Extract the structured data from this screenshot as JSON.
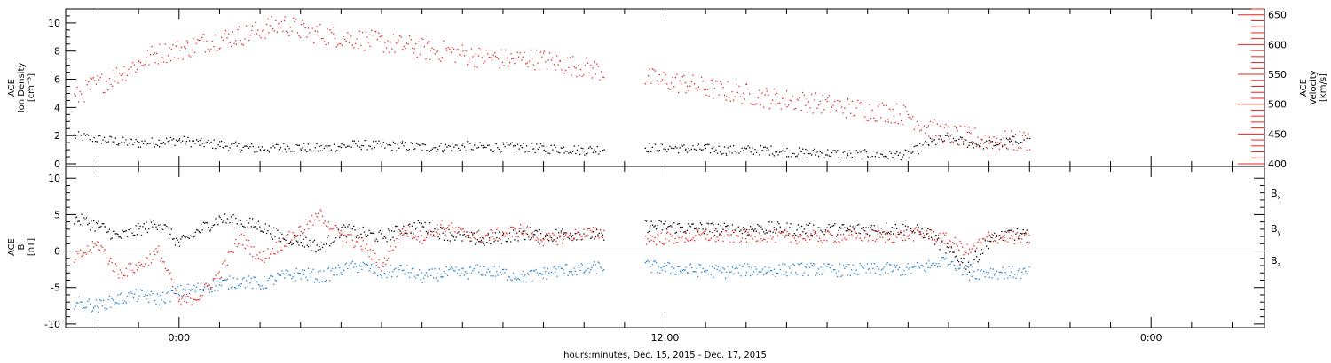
{
  "chart_data": [
    {
      "type": "scatter",
      "panel": "top",
      "ylabel_left": [
        "ACE",
        "Ion Density",
        "[cm⁻³]"
      ],
      "ylabel_right": [
        "ACE",
        "Velocity",
        "[km/s]"
      ],
      "ylim_left": [
        0,
        11
      ],
      "ylim_right": [
        400,
        660
      ],
      "yticks_left": [
        "0",
        "2",
        "4",
        "6",
        "8",
        "10"
      ],
      "yticks_right": [
        "400",
        "450",
        "500",
        "550",
        "600",
        "650"
      ],
      "x_range_hours": [
        -2.8,
        26.8
      ],
      "series": [
        {
          "axis": "left",
          "color": "#000000",
          "segments": [
            {
              "x": [
                -2.6,
                -2,
                -1.5,
                -1,
                -0.5,
                0,
                0.5,
                1,
                1.5,
                2,
                2.5,
                3,
                3.5,
                4,
                4.5,
                5,
                5.5,
                6,
                6.5,
                7,
                7.5,
                8,
                8.5,
                9,
                9.5,
                10,
                10.5
              ],
              "y": [
                2.0,
                1.8,
                1.6,
                1.5,
                1.6,
                1.7,
                1.5,
                1.4,
                1.2,
                1.1,
                1.2,
                1.2,
                1.1,
                1.3,
                1.4,
                1.3,
                1.3,
                1.2,
                1.2,
                1.3,
                1.2,
                1.2,
                1.2,
                1.1,
                1.1,
                1.0,
                1.1
              ]
            },
            {
              "x": [
                11.5,
                12,
                12.5,
                13,
                13.5,
                14,
                14.5,
                15,
                15.5,
                16,
                16.5,
                17,
                17.5,
                18,
                18.5,
                19,
                19.5,
                20,
                20.5,
                21
              ],
              "y": [
                1.2,
                1.2,
                1.1,
                1.1,
                1.0,
                1.0,
                1.0,
                0.9,
                0.8,
                0.8,
                0.7,
                0.7,
                0.6,
                0.7,
                1.5,
                1.8,
                1.5,
                1.4,
                1.6,
                2.0
              ]
            }
          ]
        },
        {
          "axis": "right",
          "color": "#e8221e",
          "segments": [
            {
              "x": [
                -2.6,
                -2.2,
                -1.8,
                -1.4,
                -1,
                -0.6,
                -0.2,
                0.2,
                0.6,
                1,
                1.4,
                1.8,
                2.2,
                2.6,
                3,
                3.4,
                3.8,
                4.2,
                4.6,
                5,
                5.4,
                5.8,
                6.2,
                6.6,
                7,
                7.4,
                7.8,
                8.2,
                8.6,
                9,
                9.4,
                9.8,
                10.2,
                10.5
              ],
              "y": [
                510,
                530,
                540,
                555,
                570,
                585,
                590,
                595,
                605,
                610,
                615,
                620,
                630,
                635,
                625,
                620,
                615,
                612,
                608,
                605,
                600,
                598,
                590,
                590,
                585,
                580,
                578,
                575,
                578,
                575,
                568,
                565,
                560,
                555
              ]
            },
            {
              "x": [
                11.5,
                12,
                12.5,
                13,
                13.5,
                14,
                14.5,
                15,
                15.5,
                16,
                16.5,
                17,
                17.5,
                18,
                18.5,
                19,
                19.5,
                20,
                20.5,
                21
              ],
              "y": [
                545,
                540,
                535,
                528,
                522,
                518,
                512,
                508,
                505,
                500,
                495,
                490,
                488,
                482,
                460,
                450,
                445,
                442,
                438,
                440
              ]
            }
          ]
        }
      ]
    },
    {
      "type": "scatter",
      "panel": "bottom",
      "ylabel_left": [
        "ACE",
        "B",
        "[nT]"
      ],
      "ylim": [
        -10.5,
        11
      ],
      "yticks": [
        "-10",
        "-5",
        "0",
        "5",
        "10"
      ],
      "xticks": [
        "0:00",
        "12:00",
        "0:00"
      ],
      "xticks_hours": [
        0,
        12,
        24
      ],
      "xlabel": "hours:minutes, Dec. 15, 2015 - Dec. 17, 2015",
      "legend": [
        "Bx",
        "By",
        "Bz"
      ],
      "legend_placement": "right",
      "series": [
        {
          "name": "Bx",
          "color": "#000000",
          "segments": [
            {
              "x": [
                -2.6,
                -2,
                -1.5,
                -1,
                -0.5,
                0,
                0.5,
                1,
                1.5,
                2,
                2.5,
                3,
                3.5,
                4,
                4.5,
                5,
                5.5,
                6,
                6.5,
                7,
                7.5,
                8,
                8.5,
                9,
                9.5,
                10,
                10.5
              ],
              "y": [
                4.5,
                3.5,
                2.0,
                3.0,
                4.0,
                1.0,
                3.0,
                4.5,
                4.0,
                3.5,
                2.0,
                1.5,
                0.5,
                3.0,
                2.5,
                2.0,
                3.0,
                3.5,
                2.5,
                2.0,
                1.5,
                2.0,
                2.5,
                2.0,
                2.5,
                2.5,
                2.0
              ]
            },
            {
              "x": [
                11.5,
                12,
                12.5,
                13,
                13.5,
                14,
                14.5,
                15,
                15.5,
                16,
                16.5,
                17,
                17.5,
                18,
                18.5,
                19,
                19.5,
                20,
                20.5,
                21
              ],
              "y": [
                3.5,
                3.5,
                3.2,
                3.2,
                3.0,
                3.0,
                3.2,
                3.1,
                3.0,
                3.0,
                3.0,
                3.1,
                3.2,
                3.0,
                2.5,
                0.0,
                -2.0,
                1.5,
                2.5,
                2.0
              ]
            }
          ]
        },
        {
          "name": "By",
          "color": "#1f7fd4",
          "segments": [
            {
              "x": [
                -2.6,
                -2,
                -1.5,
                -1,
                -0.5,
                0,
                0.5,
                1,
                1.5,
                2,
                2.5,
                3,
                3.5,
                4,
                4.5,
                5,
                5.5,
                6,
                6.5,
                7,
                7.5,
                8,
                8.5,
                9,
                9.5,
                10,
                10.5
              ],
              "y": [
                -7.0,
                -7.5,
                -6.5,
                -6.0,
                -6.5,
                -5.5,
                -5.0,
                -4.5,
                -4.0,
                -4.5,
                -3.5,
                -3.0,
                -3.5,
                -2.5,
                -2.0,
                -3.0,
                -2.5,
                -3.5,
                -3.0,
                -3.0,
                -2.5,
                -3.0,
                -3.5,
                -3.0,
                -2.5,
                -2.5,
                -2.0
              ]
            },
            {
              "x": [
                11.5,
                12,
                12.5,
                13,
                13.5,
                14,
                14.5,
                15,
                15.5,
                16,
                16.5,
                17,
                17.5,
                18,
                18.5,
                19,
                19.5,
                20,
                20.5,
                21
              ],
              "y": [
                -2.0,
                -2.3,
                -2.5,
                -2.6,
                -2.8,
                -2.5,
                -2.6,
                -2.5,
                -2.4,
                -2.5,
                -2.6,
                -2.5,
                -2.4,
                -2.5,
                -2.0,
                -1.0,
                -3.0,
                -2.8,
                -2.9,
                -3.0
              ]
            }
          ]
        },
        {
          "name": "Bz",
          "color": "#e8221e",
          "segments": [
            {
              "x": [
                -2.6,
                -2,
                -1.5,
                -1,
                -0.5,
                0,
                0.5,
                1,
                1.5,
                2,
                2.5,
                3,
                3.5,
                4,
                4.5,
                5,
                5.5,
                6,
                6.5,
                7,
                7.5,
                8,
                8.5,
                9,
                9.5,
                10,
                10.5
              ],
              "y": [
                -1.0,
                1.0,
                -3.0,
                -2.0,
                0.0,
                -7.0,
                -6.0,
                -3.0,
                2.0,
                -1.0,
                1.0,
                3.0,
                5.0,
                2.0,
                1.0,
                -2.0,
                3.0,
                2.0,
                3.5,
                2.5,
                2.0,
                2.5,
                3.0,
                1.5,
                2.0,
                2.5,
                2.5
              ]
            },
            {
              "x": [
                11.5,
                12,
                12.5,
                13,
                13.5,
                14,
                14.5,
                15,
                15.5,
                16,
                16.5,
                17,
                17.5,
                18,
                18.5,
                19,
                19.5,
                20,
                20.5,
                21
              ],
              "y": [
                1.8,
                1.8,
                2.0,
                2.2,
                2.0,
                2.1,
                2.2,
                1.9,
                2.0,
                2.0,
                2.1,
                2.2,
                2.0,
                2.3,
                2.5,
                1.5,
                0.0,
                2.0,
                2.0,
                1.5
              ]
            }
          ]
        }
      ]
    }
  ]
}
